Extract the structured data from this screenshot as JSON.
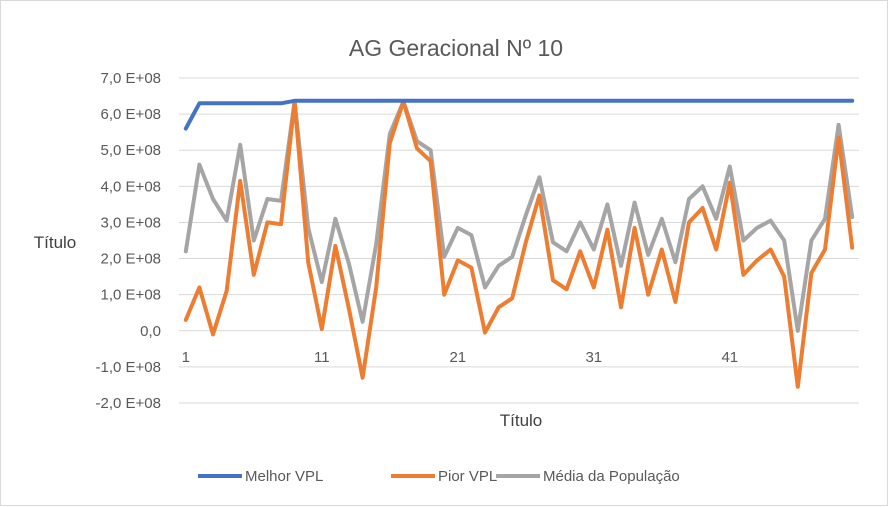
{
  "chart_data": {
    "type": "line",
    "title": "AG Geracional Nº 10",
    "xlabel": "Título",
    "ylabel": "Título",
    "ylim": [
      -200000000,
      700000000
    ],
    "y_tick_values": [
      -200000000,
      -100000000,
      0,
      100000000,
      200000000,
      300000000,
      400000000,
      500000000,
      600000000,
      700000000
    ],
    "y_tick_labels": [
      "-2,0 E+08",
      "-1,0 E+08",
      "0,0",
      "1,0 E+08",
      "2,0 E+08",
      "3,0 E+08",
      "4,0 E+08",
      "5,0 E+08",
      "6,0 E+08",
      "7,0 E+08"
    ],
    "x": [
      1,
      2,
      3,
      4,
      5,
      6,
      7,
      8,
      9,
      10,
      11,
      12,
      13,
      14,
      15,
      16,
      17,
      18,
      19,
      20,
      21,
      22,
      23,
      24,
      25,
      26,
      27,
      28,
      29,
      30,
      31,
      32,
      33,
      34,
      35,
      36,
      37,
      38,
      39,
      40,
      41,
      42,
      43,
      44,
      45,
      46,
      47,
      48,
      49,
      50
    ],
    "x_tick_values": [
      1,
      11,
      21,
      31,
      41
    ],
    "x_tick_labels": [
      "1",
      "11",
      "21",
      "31",
      "41"
    ],
    "gridlines": true,
    "legend_position": "bottom",
    "series": [
      {
        "name": "Melhor VPL",
        "color": "#4472c4",
        "values": [
          560000000,
          630000000,
          630000000,
          630000000,
          630000000,
          630000000,
          630000000,
          630000000,
          637000000,
          637000000,
          637000000,
          637000000,
          637000000,
          637000000,
          637000000,
          637000000,
          637000000,
          637000000,
          637000000,
          637000000,
          637000000,
          637000000,
          637000000,
          637000000,
          637000000,
          637000000,
          637000000,
          637000000,
          637000000,
          637000000,
          637000000,
          637000000,
          637000000,
          637000000,
          637000000,
          637000000,
          637000000,
          637000000,
          637000000,
          637000000,
          637000000,
          637000000,
          637000000,
          637000000,
          637000000,
          637000000,
          637000000,
          637000000,
          637000000,
          637000000
        ]
      },
      {
        "name": "Pior VPL",
        "color": "#ed7d31",
        "values": [
          30000000,
          120000000,
          -10000000,
          110000000,
          415000000,
          155000000,
          300000000,
          295000000,
          635000000,
          190000000,
          5000000,
          235000000,
          60000000,
          -130000000,
          120000000,
          520000000,
          635000000,
          505000000,
          470000000,
          100000000,
          195000000,
          175000000,
          -5000000,
          65000000,
          90000000,
          245000000,
          375000000,
          140000000,
          115000000,
          220000000,
          120000000,
          280000000,
          65000000,
          285000000,
          100000000,
          225000000,
          80000000,
          300000000,
          340000000,
          225000000,
          410000000,
          155000000,
          195000000,
          225000000,
          150000000,
          -155000000,
          160000000,
          225000000,
          535000000,
          230000000
        ]
      },
      {
        "name": "Média da População",
        "color": "#a5a5a5",
        "values": [
          220000000,
          460000000,
          365000000,
          305000000,
          515000000,
          250000000,
          365000000,
          360000000,
          635000000,
          285000000,
          135000000,
          310000000,
          185000000,
          25000000,
          240000000,
          545000000,
          635000000,
          525000000,
          500000000,
          205000000,
          285000000,
          265000000,
          120000000,
          180000000,
          205000000,
          320000000,
          425000000,
          245000000,
          220000000,
          300000000,
          225000000,
          350000000,
          180000000,
          355000000,
          210000000,
          310000000,
          190000000,
          365000000,
          400000000,
          310000000,
          455000000,
          250000000,
          285000000,
          305000000,
          250000000,
          0,
          250000000,
          310000000,
          570000000,
          315000000
        ]
      }
    ]
  }
}
